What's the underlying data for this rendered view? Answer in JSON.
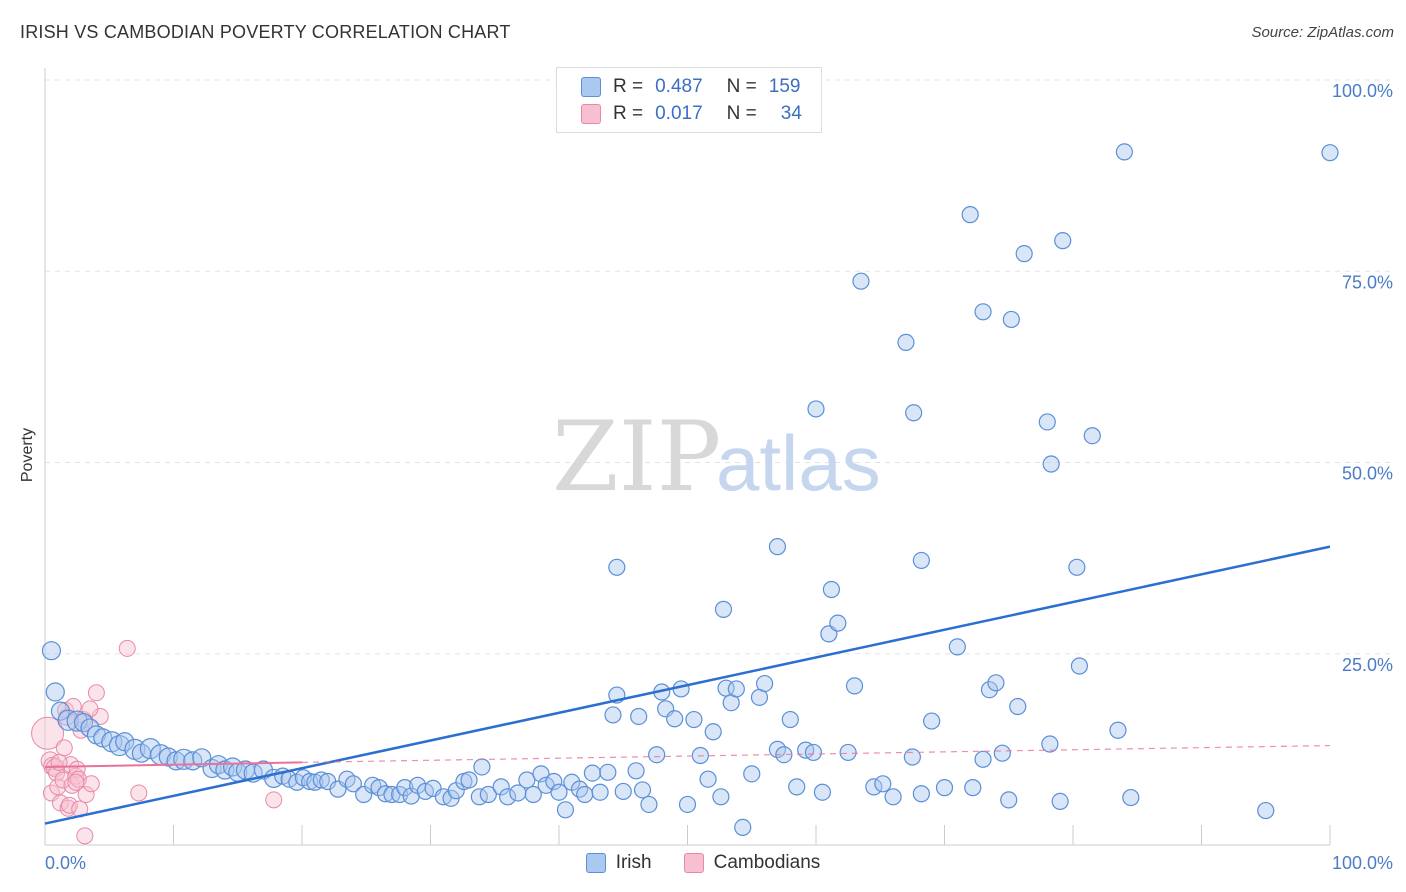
{
  "header": {
    "title": "IRISH VS CAMBODIAN POVERTY CORRELATION CHART",
    "source": "Source: ZipAtlas.com"
  },
  "watermark": {
    "part1": "ZIP",
    "part2": "atlas"
  },
  "legend": {
    "rows": [
      {
        "r_label": "R =",
        "r_value": "0.487",
        "n_label": "N =",
        "n_value": "159"
      },
      {
        "r_label": "R =",
        "r_value": "0.017",
        "n_label": "N =",
        "n_value": "34"
      }
    ]
  },
  "bottom_legend": {
    "irish": "Irish",
    "cambodians": "Cambodians"
  },
  "colors": {
    "irish_fill": "#aac8f0",
    "irish_stroke": "#5b8fd6",
    "irish_line": "#2b6fd0",
    "cambodian_fill": "#f7c0d0",
    "cambodian_stroke": "#e889a8",
    "cambodian_line": "#e8729a",
    "tick_text": "#4a7cc7"
  },
  "chart_data": {
    "type": "scatter",
    "title": "IRISH VS CAMBODIAN POVERTY CORRELATION CHART",
    "xlabel": "",
    "ylabel": "Poverty",
    "xlim": [
      0,
      100
    ],
    "ylim": [
      0,
      100
    ],
    "x_tick_labels": [
      "0.0%",
      "100.0%"
    ],
    "y_ticks": [
      25,
      50,
      75,
      100
    ],
    "y_tick_labels": [
      "25.0%",
      "50.0%",
      "75.0%",
      "100.0%"
    ],
    "grid": true,
    "series": [
      {
        "name": "Irish",
        "r": 0.487,
        "n": 159,
        "trend": {
          "x": [
            0,
            100
          ],
          "y": [
            2.8,
            39
          ]
        },
        "points": [
          [
            0.5,
            25.4,
            9
          ],
          [
            0.8,
            20,
            9
          ],
          [
            1.2,
            17.5,
            9
          ],
          [
            1.8,
            16.3,
            10
          ],
          [
            2.5,
            16.2,
            10
          ],
          [
            3,
            16,
            9
          ],
          [
            3.5,
            15.3,
            9
          ],
          [
            4,
            14.4,
            9
          ],
          [
            4.5,
            14,
            9
          ],
          [
            5.2,
            13.5,
            10
          ],
          [
            5.8,
            13,
            10
          ],
          [
            6.2,
            13.5,
            9
          ],
          [
            7,
            12.5,
            10
          ],
          [
            7.5,
            12,
            9
          ],
          [
            8.2,
            12.6,
            10
          ],
          [
            9,
            11.8,
            10
          ],
          [
            9.6,
            11.5,
            9
          ],
          [
            10.2,
            11,
            9
          ],
          [
            10.8,
            11.2,
            10
          ],
          [
            11.5,
            11,
            9
          ],
          [
            12.2,
            11.4,
            9
          ],
          [
            13,
            10,
            9
          ],
          [
            13.5,
            10.5,
            9
          ],
          [
            14,
            9.8,
            9
          ],
          [
            14.6,
            10.2,
            9
          ],
          [
            15,
            9.5,
            9
          ],
          [
            15.6,
            9.8,
            9
          ],
          [
            16.2,
            9.4,
            9
          ],
          [
            17,
            9.8,
            9
          ],
          [
            17.8,
            8.7,
            9
          ],
          [
            18.5,
            9,
            8
          ],
          [
            19,
            8.6,
            8
          ],
          [
            19.6,
            8.2,
            8
          ],
          [
            20.1,
            8.8,
            8
          ],
          [
            20.6,
            8.3,
            8
          ],
          [
            21,
            8.2,
            8
          ],
          [
            21.5,
            8.5,
            8
          ],
          [
            22,
            8.3,
            8
          ],
          [
            22.8,
            7.3,
            8
          ],
          [
            23.5,
            8.6,
            8
          ],
          [
            24,
            8,
            8
          ],
          [
            24.8,
            6.6,
            8
          ],
          [
            25.5,
            7.8,
            8
          ],
          [
            26,
            7.5,
            8
          ],
          [
            26.5,
            6.7,
            8
          ],
          [
            27,
            6.6,
            8
          ],
          [
            27.6,
            6.6,
            8
          ],
          [
            28,
            7.5,
            8
          ],
          [
            28.5,
            6.4,
            8
          ],
          [
            29,
            7.8,
            8
          ],
          [
            29.6,
            7,
            8
          ],
          [
            30.2,
            7.4,
            8
          ],
          [
            31,
            6.3,
            8
          ],
          [
            31.6,
            6.1,
            8
          ],
          [
            32,
            7.1,
            8
          ],
          [
            32.6,
            8.3,
            8
          ],
          [
            33,
            8.5,
            8
          ],
          [
            34,
            10.2,
            8
          ],
          [
            33.8,
            6.3,
            8
          ],
          [
            34.5,
            6.6,
            8
          ],
          [
            35.5,
            7.6,
            8
          ],
          [
            36,
            6.3,
            8
          ],
          [
            36.8,
            6.8,
            8
          ],
          [
            37.5,
            8.5,
            8
          ],
          [
            38,
            6.6,
            8
          ],
          [
            38.6,
            9.3,
            8
          ],
          [
            39,
            7.8,
            8
          ],
          [
            39.6,
            8.3,
            8
          ],
          [
            40,
            6.9,
            8
          ],
          [
            40.5,
            4.6,
            8
          ],
          [
            41,
            8.2,
            8
          ],
          [
            41.6,
            7.3,
            8
          ],
          [
            42,
            6.6,
            8
          ],
          [
            42.6,
            9.4,
            8
          ],
          [
            43.2,
            6.9,
            8
          ],
          [
            43.8,
            9.5,
            8
          ],
          [
            44.5,
            19.6,
            8
          ],
          [
            44.2,
            17,
            8
          ],
          [
            45,
            7,
            8
          ],
          [
            46,
            9.7,
            8
          ],
          [
            46.2,
            16.8,
            8
          ],
          [
            46.5,
            7.2,
            8
          ],
          [
            47,
            5.3,
            8
          ],
          [
            47.6,
            11.8,
            8
          ],
          [
            48,
            20,
            8
          ],
          [
            48.3,
            17.8,
            8
          ],
          [
            49,
            16.5,
            8
          ],
          [
            49.5,
            20.4,
            8
          ],
          [
            50,
            5.3,
            8
          ],
          [
            50.5,
            16.4,
            8
          ],
          [
            51,
            11.7,
            8
          ],
          [
            51.6,
            8.6,
            8
          ],
          [
            52,
            14.8,
            8
          ],
          [
            52.6,
            6.3,
            8
          ],
          [
            53,
            20.5,
            8
          ],
          [
            53.4,
            18.6,
            8
          ],
          [
            53.8,
            20.4,
            8
          ],
          [
            54.3,
            2.3,
            8
          ],
          [
            55,
            9.3,
            8
          ],
          [
            55.6,
            19.3,
            8
          ],
          [
            56,
            21.1,
            8
          ],
          [
            57,
            12.5,
            8
          ],
          [
            57.5,
            11.8,
            8
          ],
          [
            58,
            16.4,
            8
          ],
          [
            58.5,
            7.6,
            8
          ],
          [
            59.2,
            12.4,
            8
          ],
          [
            59.8,
            12.1,
            8
          ],
          [
            60.5,
            6.9,
            8
          ],
          [
            61,
            27.6,
            8
          ],
          [
            61.7,
            29,
            8
          ],
          [
            62.5,
            12.1,
            8
          ],
          [
            63,
            20.8,
            8
          ],
          [
            64.5,
            7.6,
            8
          ],
          [
            65.2,
            8,
            8
          ],
          [
            66,
            6.3,
            8
          ],
          [
            67.5,
            11.5,
            8
          ],
          [
            68.2,
            6.7,
            8
          ],
          [
            69,
            16.2,
            8
          ],
          [
            70,
            7.5,
            8
          ],
          [
            71,
            25.9,
            8
          ],
          [
            72.2,
            7.5,
            8
          ],
          [
            73,
            11.2,
            8
          ],
          [
            73.5,
            20.3,
            8
          ],
          [
            74.5,
            12,
            8
          ],
          [
            75,
            5.9,
            8
          ],
          [
            74,
            21.2,
            8
          ],
          [
            75.7,
            18.1,
            8
          ],
          [
            78.2,
            13.2,
            8
          ],
          [
            79,
            5.7,
            8
          ],
          [
            80.5,
            23.4,
            8
          ],
          [
            83.5,
            15,
            8
          ],
          [
            84.5,
            6.2,
            8
          ],
          [
            95,
            4.5,
            8
          ],
          [
            44.5,
            36.3,
            8
          ],
          [
            52.8,
            30.8,
            8
          ],
          [
            57,
            39,
            8
          ],
          [
            61.2,
            33.4,
            8
          ],
          [
            68.2,
            37.2,
            8
          ],
          [
            80.3,
            36.3,
            8
          ],
          [
            60,
            57,
            8
          ],
          [
            67,
            65.7,
            8
          ],
          [
            63.5,
            73.7,
            8
          ],
          [
            67.6,
            56.5,
            8
          ],
          [
            72,
            82.4,
            8
          ],
          [
            73,
            69.7,
            8
          ],
          [
            75.2,
            68.7,
            8
          ],
          [
            76.2,
            77.3,
            8
          ],
          [
            78,
            55.3,
            8
          ],
          [
            78.3,
            49.8,
            8
          ],
          [
            79.2,
            79,
            8
          ],
          [
            81.5,
            53.5,
            8
          ],
          [
            84,
            90.6,
            8
          ],
          [
            100,
            90.5,
            8
          ]
        ]
      },
      {
        "name": "Cambodians",
        "r": 0.017,
        "n": 34,
        "trend": {
          "x": [
            0,
            20
          ],
          "y": [
            10.2,
            10.8
          ]
        },
        "trend_extension": {
          "x": [
            20,
            100
          ],
          "y": [
            10.8,
            13
          ]
        },
        "points": [
          [
            0.2,
            14.6,
            16
          ],
          [
            0.4,
            11,
            9
          ],
          [
            0.6,
            10.3,
            9
          ],
          [
            0.8,
            10.1,
            9
          ],
          [
            0.5,
            6.8,
            8
          ],
          [
            0.9,
            9.4,
            8
          ],
          [
            1,
            7.6,
            8
          ],
          [
            1.2,
            5.5,
            8
          ],
          [
            1.4,
            8.5,
            8
          ],
          [
            1.5,
            12.7,
            8
          ],
          [
            1.6,
            17.6,
            8
          ],
          [
            1.7,
            16.7,
            8
          ],
          [
            1.8,
            4.8,
            8
          ],
          [
            2,
            10.5,
            8
          ],
          [
            2.1,
            7.8,
            8
          ],
          [
            2.2,
            18.1,
            8
          ],
          [
            2.4,
            9,
            8
          ],
          [
            2.5,
            9.9,
            8
          ],
          [
            2.6,
            8.6,
            8
          ],
          [
            2.8,
            15,
            8
          ],
          [
            3,
            16.4,
            8
          ],
          [
            3.1,
            1.2,
            8
          ],
          [
            3.2,
            6.6,
            8
          ],
          [
            3.6,
            8,
            8
          ],
          [
            4,
            19.9,
            8
          ],
          [
            4.3,
            16.8,
            8
          ],
          [
            6.4,
            25.7,
            8
          ],
          [
            7.3,
            6.8,
            8
          ],
          [
            17.8,
            5.9,
            8
          ],
          [
            2.4,
            8.2,
            8
          ],
          [
            1.9,
            5.2,
            8
          ],
          [
            3.5,
            17.8,
            8
          ],
          [
            1.1,
            10.8,
            8
          ],
          [
            2.7,
            4.7,
            8
          ]
        ]
      }
    ]
  }
}
